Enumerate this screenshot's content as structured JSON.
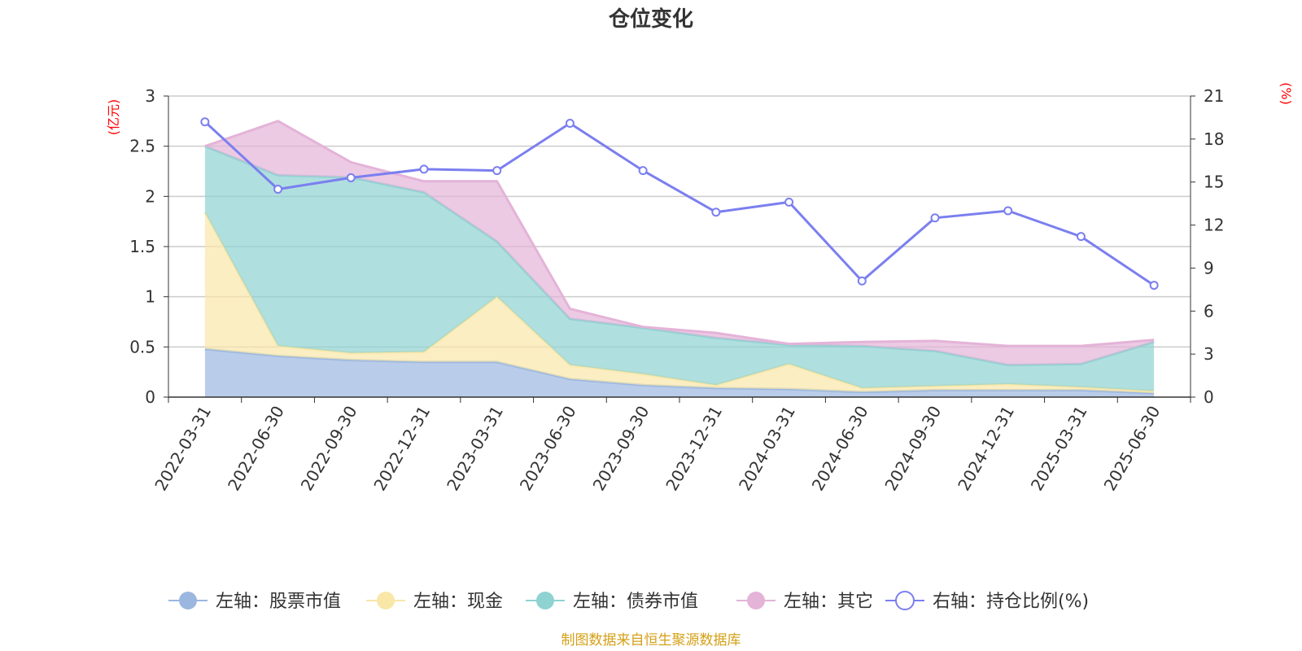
{
  "chart_data": {
    "type": "area",
    "title": "仓位变化",
    "categories": [
      "2022-03-31",
      "2022-06-30",
      "2022-09-30",
      "2022-12-31",
      "2023-03-31",
      "2023-06-30",
      "2023-09-30",
      "2023-12-31",
      "2024-03-31",
      "2024-06-30",
      "2024-09-30",
      "2024-12-31",
      "2025-03-31",
      "2025-06-30"
    ],
    "left_axis": {
      "unit": "(亿元)",
      "ylim": [
        0,
        3
      ],
      "ticks": [
        "0",
        "0.5",
        "1",
        "1.5",
        "2",
        "2.5",
        "3"
      ]
    },
    "right_axis": {
      "unit": "(%)",
      "ylim": [
        0,
        21
      ],
      "ticks": [
        "0",
        "3",
        "6",
        "9",
        "12",
        "15",
        "18",
        "21"
      ]
    },
    "stacked": true,
    "series": [
      {
        "name": "左轴：股票市值",
        "axis": "left",
        "kind": "area",
        "color": "#9bb7e0",
        "values": [
          0.48,
          0.41,
          0.37,
          0.35,
          0.35,
          0.18,
          0.12,
          0.09,
          0.08,
          0.05,
          0.07,
          0.07,
          0.07,
          0.04
        ]
      },
      {
        "name": "左轴：现金",
        "axis": "left",
        "kind": "area",
        "color": "#f9e7a8",
        "values": [
          1.36,
          0.1,
          0.07,
          0.1,
          0.65,
          0.14,
          0.11,
          0.03,
          0.25,
          0.04,
          0.04,
          0.06,
          0.03,
          0.02
        ]
      },
      {
        "name": "左轴：债券市值",
        "axis": "left",
        "kind": "area",
        "color": "#8fd2d2",
        "values": [
          0.66,
          1.7,
          1.75,
          1.59,
          0.55,
          0.46,
          0.46,
          0.47,
          0.19,
          0.42,
          0.35,
          0.19,
          0.23,
          0.49
        ]
      },
      {
        "name": "左轴：其它",
        "axis": "left",
        "kind": "area",
        "color": "#e4b3d8",
        "values": [
          0.0,
          0.54,
          0.15,
          0.11,
          0.6,
          0.1,
          0.01,
          0.05,
          0.01,
          0.04,
          0.1,
          0.19,
          0.18,
          0.02
        ]
      },
      {
        "name": "右轴：持仓比例(%)",
        "axis": "right",
        "kind": "line",
        "color": "#7b7fef",
        "values": [
          19.2,
          14.5,
          15.3,
          15.9,
          15.8,
          19.1,
          15.8,
          12.9,
          13.6,
          8.1,
          12.5,
          13.0,
          11.2,
          7.8
        ]
      }
    ],
    "grid": true,
    "legend_position": "bottom",
    "source": "制图数据来自恒生聚源数据库"
  }
}
